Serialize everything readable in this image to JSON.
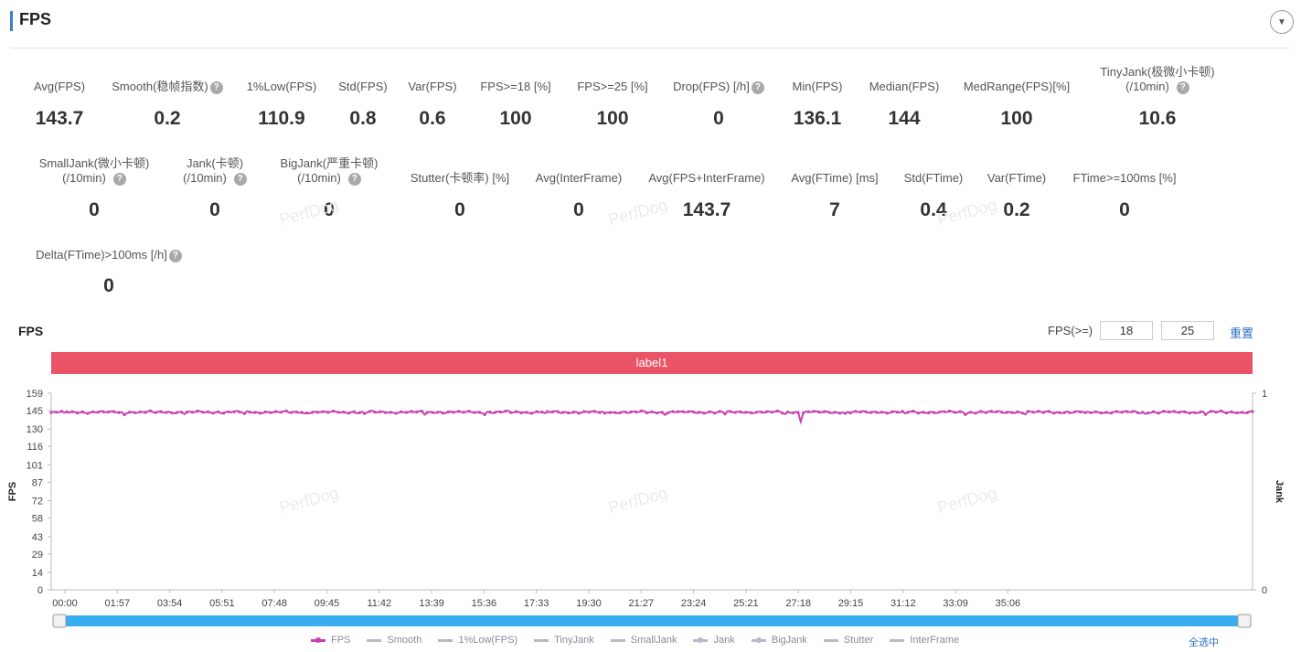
{
  "header": {
    "title": "FPS"
  },
  "metrics_row1": [
    {
      "label": "Avg(FPS)",
      "value": "143.7",
      "help": false
    },
    {
      "label": "Smooth(稳帧指数)",
      "value": "0.2",
      "help": true
    },
    {
      "label": "1%Low(FPS)",
      "value": "110.9",
      "help": false
    },
    {
      "label": "Std(FPS)",
      "value": "0.8",
      "help": false
    },
    {
      "label": "Var(FPS)",
      "value": "0.6",
      "help": false
    },
    {
      "label": "FPS>=18 [%]",
      "value": "100",
      "help": false
    },
    {
      "label": "FPS>=25 [%]",
      "value": "100",
      "help": false
    },
    {
      "label": "Drop(FPS) [/h]",
      "value": "0",
      "help": true
    },
    {
      "label": "Min(FPS)",
      "value": "136.1",
      "help": false
    },
    {
      "label": "Median(FPS)",
      "value": "144",
      "help": false
    },
    {
      "label": "MedRange(FPS)[%]",
      "value": "100",
      "help": false
    },
    {
      "label": "TinyJank(极微小卡顿)",
      "label2": "(/10min)",
      "value": "10.6",
      "help": true
    }
  ],
  "metrics_row2": [
    {
      "label": "SmallJank(微小卡顿)",
      "label2": "(/10min)",
      "value": "0",
      "help": true
    },
    {
      "label": "Jank(卡顿)",
      "label2": "(/10min)",
      "value": "0",
      "help": true
    },
    {
      "label": "BigJank(严重卡顿)",
      "label2": "(/10min)",
      "value": "0",
      "help": true
    },
    {
      "label": "Stutter(卡顿率) [%]",
      "value": "0",
      "help": false
    },
    {
      "label": "Avg(InterFrame)",
      "value": "0",
      "help": false
    },
    {
      "label": "Avg(FPS+InterFrame)",
      "value": "143.7",
      "help": false
    },
    {
      "label": "Avg(FTime) [ms]",
      "value": "7",
      "help": false
    },
    {
      "label": "Std(FTime)",
      "value": "0.4",
      "help": false
    },
    {
      "label": "Var(FTime)",
      "value": "0.2",
      "help": false
    },
    {
      "label": "FTime>=100ms [%]",
      "value": "0",
      "help": false
    }
  ],
  "metrics_row3": [
    {
      "label": "Delta(FTime)>100ms [/h]",
      "value": "0",
      "help": true
    }
  ],
  "chart_section": {
    "title": "FPS",
    "threshold_label": "FPS(>=)",
    "threshold1": "18",
    "threshold2": "25",
    "reset_label": "重置",
    "band_label": "label1",
    "select_all_label": "全选中"
  },
  "watermark_text": "PerfDog",
  "legend": [
    {
      "name": "FPS",
      "color": "#c840b0",
      "marker": true
    },
    {
      "name": "Smooth",
      "color": "#b8b8c8",
      "marker": false
    },
    {
      "name": "1%Low(FPS)",
      "color": "#b8b8c8",
      "marker": false
    },
    {
      "name": "TinyJank",
      "color": "#b8b8c8",
      "marker": false
    },
    {
      "name": "SmallJank",
      "color": "#b8b8c8",
      "marker": false
    },
    {
      "name": "Jank",
      "color": "#b8b8c8",
      "marker": true
    },
    {
      "name": "BigJank",
      "color": "#b8b8c8",
      "marker": true
    },
    {
      "name": "Stutter",
      "color": "#b8b8c8",
      "marker": false
    },
    {
      "name": "InterFrame",
      "color": "#b8b8c8",
      "marker": false
    }
  ],
  "chart_data": {
    "type": "line",
    "ylabel": "FPS",
    "y2label": "Jank",
    "ylim": [
      0,
      159
    ],
    "y_ticks": [
      0,
      14,
      29,
      43,
      58,
      72,
      87,
      101,
      116,
      130,
      145,
      159
    ],
    "y2_ticks": [
      0,
      1
    ],
    "x_ticks": [
      "00:00",
      "01:57",
      "03:54",
      "05:51",
      "07:48",
      "09:45",
      "11:42",
      "13:39",
      "15:36",
      "17:33",
      "19:30",
      "21:27",
      "23:24",
      "25:21",
      "27:18",
      "29:15",
      "31:12",
      "33:09",
      "35:06"
    ],
    "x_range_seconds": [
      0,
      2300
    ],
    "series": [
      {
        "name": "FPS",
        "color": "#c840b0",
        "baseline": 143.7,
        "min_value": 136.1,
        "min_at_seconds": 1435
      }
    ]
  }
}
